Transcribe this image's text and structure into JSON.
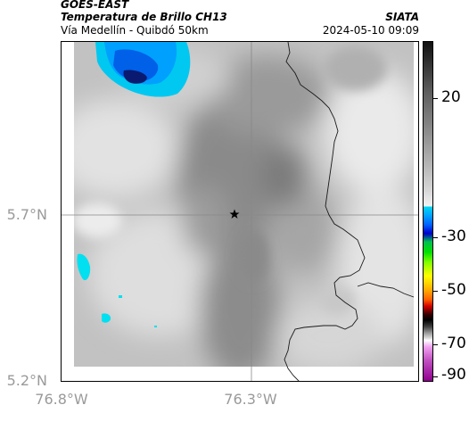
{
  "header": {
    "satellite": "GOES-EAST",
    "product": "Temperatura de Brillo CH13",
    "region": "Vía Medellín - Quibdó 50km",
    "organization": "SIATA",
    "datetime": "2024-05-10 09:09"
  },
  "axes": {
    "lat_ticks": [
      "5.7°N",
      "5.2°N"
    ],
    "lon_ticks": [
      "76.8°W",
      "76.3°W"
    ]
  },
  "colorbar": {
    "tick_labels": [
      "20",
      "-30",
      "-50",
      "-70",
      "-90"
    ],
    "colors": {
      "warm_cloud_free": "#f0f0f0",
      "mid_gray": "#8c8c8c",
      "cold_cyan": "#00d8f0",
      "cold_blue": "#0040ff",
      "very_cold_navy": "#0a1a70"
    }
  },
  "map": {
    "marker_icon": "star-icon",
    "crosshair": true
  }
}
